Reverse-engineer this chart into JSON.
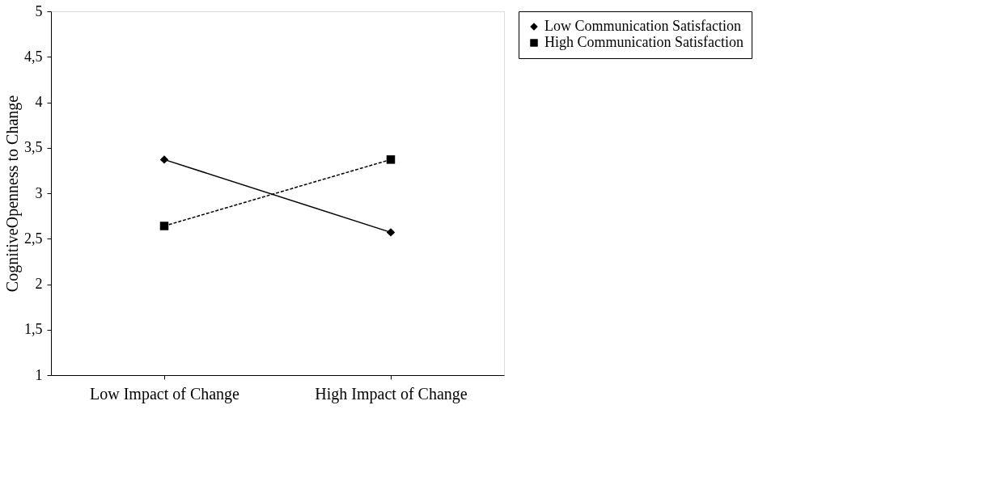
{
  "chart_data": {
    "type": "line",
    "ylabel": "CognitiveOpenness to Change",
    "categories": [
      "Low Impact of Change",
      "High Impact of Change"
    ],
    "series": [
      {
        "name": "Low Communication Satisfaction",
        "color": "#000000",
        "values": [
          3.37,
          2.57
        ],
        "marker": "diamond",
        "line_style": "solid"
      },
      {
        "name": "High Communication Satisfaction",
        "color": "#000000",
        "values": [
          2.64,
          3.37
        ],
        "marker": "square",
        "line_style": "dashed"
      }
    ],
    "ylim": [
      1,
      5
    ],
    "yticks": [
      1,
      {
        "value": 1.5,
        "label": "1,5"
      },
      2,
      {
        "value": 2.5,
        "label": "2,5"
      },
      3,
      {
        "value": 3.5,
        "label": "3,5"
      },
      4,
      {
        "value": 4.5,
        "label": "4,5"
      },
      5
    ],
    "grid": false,
    "legend": "right"
  }
}
